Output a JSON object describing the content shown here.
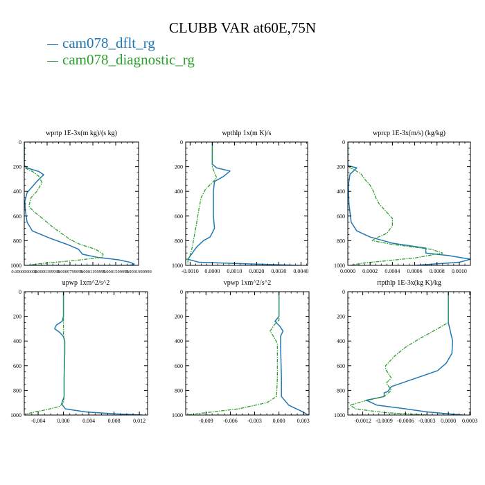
{
  "figure": {
    "title": "CLUBB VAR at60E,75N",
    "legend": [
      {
        "label": "cam078_dflt_rg",
        "color": "#1f77b4"
      },
      {
        "label": "cam078_diagnostic_rg",
        "color": "#2ca02c"
      }
    ]
  },
  "chart_data": [
    {
      "type": "line",
      "title": "wprtp  1E-3x(m kg)/(s kg)",
      "xlim": [
        0,
        0.0002
      ],
      "ylim": [
        1000,
        0
      ],
      "xticks": [
        0.0,
        4e-05,
        8e-05,
        0.00012,
        0.00016,
        0.0002
      ],
      "xticklabels": [
        "0.0000000000",
        "0.0000399999",
        "0.0000799999",
        "0.0001199999",
        "0.0001599999",
        "0.0001999999"
      ],
      "yticks": [
        0,
        200,
        400,
        600,
        800,
        1000
      ],
      "yticklabels": [
        "0",
        "200",
        "400",
        "600",
        "800",
        "1000"
      ],
      "series": [
        {
          "name": "cam078_dflt_rg",
          "color": "#1f77b4",
          "x": [
            0,
            0,
            5e-06,
            2.6e-05,
            3.4e-05,
            2.2e-05,
            5e-06,
            1e-06,
            2e-06,
            5e-06,
            1.4e-05,
            4.5e-05,
            7.5e-05,
            9.5e-05,
            0.000102,
            0.000128,
            0.000165,
            0.000185,
            0.0001925,
            0.00019,
            0.000182,
            0
          ],
          "y": [
            0,
            190,
            210,
            240,
            265,
            320,
            410,
            480,
            560,
            650,
            720,
            780,
            830,
            870,
            910,
            935,
            955,
            975,
            990,
            995,
            1000,
            1000
          ]
        },
        {
          "name": "cam078_diagnostic_rg",
          "color": "#2ca02c",
          "x": [
            0,
            0,
            3e-06,
            1.5e-05,
            2.6e-05,
            3.1e-05,
            2.2e-05,
            1.2e-05,
            8e-06,
            1.6e-05,
            3.2e-05,
            5e-05,
            6.5e-05,
            8e-05,
            9.8e-05,
            0.000125,
            0.000138,
            0.000136,
            9e-05,
            3e-05,
            5e-06
          ],
          "y": [
            0,
            200,
            215,
            240,
            280,
            330,
            400,
            450,
            520,
            560,
            620,
            690,
            740,
            790,
            830,
            870,
            910,
            935,
            960,
            985,
            1000
          ]
        }
      ]
    },
    {
      "type": "line",
      "title": "wpthlp  1x(m K)/s",
      "xlim": [
        -0.0012,
        0.0043
      ],
      "ylim": [
        1000,
        0
      ],
      "xticks": [
        -0.001,
        0.0,
        0.001,
        0.002,
        0.003,
        0.004
      ],
      "xticklabels": [
        "-0.0010",
        "0.0000",
        "0.0010",
        "0.0020",
        "0.0030",
        "0.0040"
      ],
      "yticks": [
        0,
        200,
        400,
        600,
        800,
        1000
      ],
      "yticklabels": [
        "0",
        "200",
        "400",
        "600",
        "800",
        "1000"
      ],
      "series": [
        {
          "name": "cam078_dflt_rg",
          "color": "#1f77b4",
          "x": [
            0,
            0,
            0.0002,
            0.0008,
            0.0005,
            0.0001,
            5e-05,
            5e-05,
            5e-05,
            0.0001,
            -0.0001,
            -0.0004,
            -0.0007,
            -0.0009,
            -0.0011,
            -0.0006,
            0.002,
            0.004
          ],
          "y": [
            0,
            180,
            210,
            235,
            280,
            320,
            400,
            500,
            600,
            700,
            770,
            800,
            850,
            900,
            950,
            975,
            990,
            1000
          ]
        },
        {
          "name": "cam078_diagnostic_rg",
          "color": "#2ca02c",
          "x": [
            0,
            0,
            0.0001,
            0.0002,
            0.0,
            -0.0003,
            -0.0005,
            -0.0006,
            -0.0007,
            -0.0008,
            -0.0009,
            -0.001,
            -0.0011,
            -0.0011
          ],
          "y": [
            0,
            200,
            250,
            290,
            330,
            380,
            450,
            540,
            650,
            750,
            850,
            920,
            960,
            990
          ]
        }
      ]
    },
    {
      "type": "line",
      "title": "wprcp  1E-3x(m/s) (kg/kg)",
      "xlim": [
        0,
        0.0011
      ],
      "ylim": [
        1000,
        0
      ],
      "xticks": [
        0.0,
        0.0002,
        0.0004,
        0.0006,
        0.0008,
        0.001
      ],
      "xticklabels": [
        "0.0000",
        "0.0002",
        "0.0004",
        "0.0006",
        "0.0008",
        "0.0010"
      ],
      "yticks": [
        0,
        200,
        400,
        600,
        800,
        1000
      ],
      "yticklabels": [
        "0",
        "200",
        "400",
        "600",
        "800",
        "1000"
      ],
      "series": [
        {
          "name": "cam078_dflt_rg",
          "color": "#1f77b4",
          "x": [
            0,
            0,
            8e-05,
            2e-05,
            5e-06,
            1e-05,
            3e-05,
            8e-05,
            0.0002,
            0.0004,
            0.0007,
            0.0007,
            0.0009,
            0.0011,
            0.001,
            0.0006
          ],
          "y": [
            0,
            190,
            210,
            260,
            350,
            500,
            650,
            720,
            770,
            820,
            860,
            900,
            920,
            950,
            975,
            1000
          ]
        },
        {
          "name": "cam078_diagnostic_rg",
          "color": "#2ca02c",
          "x": [
            0,
            0,
            5e-05,
            0.00012,
            0.00015,
            0.0002,
            0.00023,
            0.00025,
            0.00028,
            0.00034,
            0.0004,
            0.0004,
            0.00035,
            0.00025,
            0.00022,
            0.0004,
            0.00075,
            0.00085,
            0.0006,
            0.00015,
            2e-05
          ],
          "y": [
            0,
            200,
            220,
            260,
            300,
            350,
            400,
            450,
            500,
            560,
            620,
            680,
            740,
            780,
            800,
            830,
            870,
            900,
            940,
            980,
            1000
          ]
        }
      ]
    },
    {
      "type": "line",
      "title": "upwp   1xm^2/s^2",
      "xlim": [
        -0.0062,
        0.0133
      ],
      "ylim": [
        1000,
        0
      ],
      "xticks": [
        -0.004,
        0.0,
        0.004,
        0.008,
        0.012
      ],
      "xticklabels": [
        "-0.004",
        "0.000",
        "0.004",
        "0.008",
        "0.012"
      ],
      "yticks": [
        0,
        200,
        400,
        600,
        800,
        1000
      ],
      "yticklabels": [
        "0",
        "200",
        "400",
        "600",
        "800",
        "1000"
      ],
      "series": [
        {
          "name": "cam078_dflt_rg",
          "color": "#1f77b4",
          "x": [
            0,
            0,
            -0.0002,
            -0.0011,
            -0.0014,
            -0.0006,
            -5e-05,
            0.0002,
            0.0002,
            0.0001,
            0.0001,
            -0.0001,
            -0.0003,
            0.0003,
            0.0035,
            0.008,
            0.0125
          ],
          "y": [
            0,
            200,
            240,
            270,
            300,
            330,
            360,
            400,
            500,
            700,
            850,
            880,
            910,
            950,
            975,
            990,
            1000
          ]
        },
        {
          "name": "cam078_diagnostic_rg",
          "color": "#2ca02c",
          "x": [
            0,
            0,
            0.0002,
            0.0002,
            0.0001,
            0.0001,
            0.0,
            -0.0006,
            -0.0025,
            -0.0045,
            -0.0058,
            -0.006
          ],
          "y": [
            0,
            350,
            400,
            500,
            700,
            850,
            900,
            930,
            955,
            975,
            990,
            1000
          ]
        }
      ]
    },
    {
      "type": "line",
      "title": "vpwp   1xm^2/s^2",
      "xlim": [
        -0.0115,
        0.0037
      ],
      "ylim": [
        1000,
        0
      ],
      "xticks": [
        -0.009,
        -0.006,
        -0.003,
        0.0,
        0.003
      ],
      "xticklabels": [
        "-0.009",
        "-0.006",
        "-0.003",
        "0.000",
        "0.003"
      ],
      "yticks": [
        0,
        200,
        400,
        600,
        800,
        1000
      ],
      "yticklabels": [
        "0",
        "200",
        "400",
        "600",
        "800",
        "1000"
      ],
      "series": [
        {
          "name": "cam078_dflt_rg",
          "color": "#1f77b4",
          "x": [
            0,
            0,
            -0.0005,
            0.0001,
            0.0005,
            0.0002,
            0.0002,
            0.0003,
            0.0003,
            0.0012,
            0.0028,
            0.0036
          ],
          "y": [
            0,
            200,
            240,
            280,
            320,
            360,
            450,
            700,
            850,
            920,
            970,
            1000
          ]
        },
        {
          "name": "cam078_diagnostic_rg",
          "color": "#2ca02c",
          "x": [
            0,
            0,
            -0.0006,
            -0.0011,
            -0.0006,
            -0.0002,
            -0.0002,
            -0.0002,
            -0.0003,
            -0.0015,
            -0.005,
            -0.0095,
            -0.0113
          ],
          "y": [
            0,
            230,
            270,
            320,
            370,
            420,
            500,
            700,
            850,
            900,
            950,
            985,
            1000
          ]
        }
      ]
    },
    {
      "type": "line",
      "title": "rtpthlp  1E-3x(kg K)/kg",
      "xlim": [
        -0.00141,
        0.00031
      ],
      "ylim": [
        1000,
        0
      ],
      "xticks": [
        -0.0012,
        -0.0009,
        -0.0006,
        -0.0003,
        0.0,
        0.0003
      ],
      "xticklabels": [
        "-0.0012",
        "-0.0009",
        "-0.0006",
        "-0.0003",
        "0.0000",
        "0.0003"
      ],
      "yticks": [
        0,
        200,
        400,
        600,
        800,
        1000
      ],
      "yticklabels": [
        "0",
        "200",
        "400",
        "600",
        "800",
        "1000"
      ],
      "series": [
        {
          "name": "cam078_dflt_rg",
          "color": "#1f77b4",
          "x": [
            0,
            0,
            2e-05,
            6e-05,
            5e-05,
            -3e-05,
            -0.00015,
            -0.00035,
            -0.0006,
            -0.0008,
            -0.00085,
            -0.0009,
            -0.0009,
            -0.00115,
            -0.001,
            -0.0006,
            -0.0003,
            0.0002
          ],
          "y": [
            0,
            250,
            300,
            400,
            500,
            580,
            640,
            680,
            730,
            770,
            810,
            820,
            850,
            880,
            920,
            950,
            975,
            1000
          ]
        },
        {
          "name": "cam078_diagnostic_rg",
          "color": "#2ca02c",
          "x": [
            0,
            0,
            -0.00015,
            -0.0004,
            -0.0006,
            -0.00075,
            -0.00088,
            -0.00088,
            -0.0008,
            -0.00087,
            -0.0008,
            -0.0009,
            -0.0012,
            -0.00138,
            -0.0013,
            -0.0009,
            -0.0003
          ],
          "y": [
            0,
            250,
            300,
            380,
            450,
            520,
            600,
            630,
            700,
            740,
            800,
            850,
            890,
            920,
            950,
            980,
            1000
          ]
        }
      ]
    }
  ]
}
